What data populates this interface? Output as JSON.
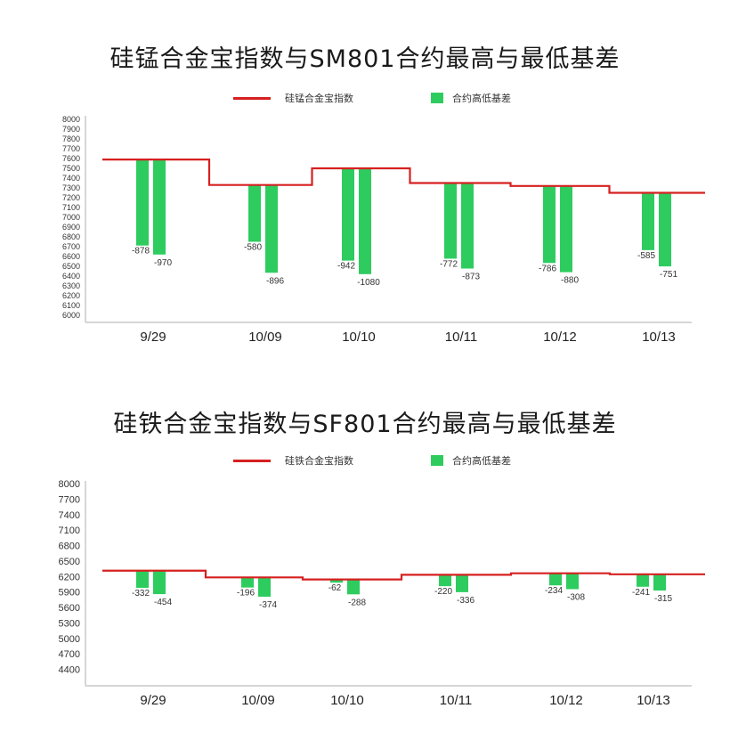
{
  "colors": {
    "line": "#d62020",
    "bar": "#2ecc5f",
    "axis": "#c9c9c9",
    "text": "#333333"
  },
  "legend": {
    "line_label": "硅锰合金宝指数",
    "bar_label": "合约高低基差"
  },
  "chart_data": [
    {
      "type": "bar",
      "title": "硅锰合金宝指数与SM801合约最高与最低基差",
      "categories": [
        "9/29",
        "10/09",
        "10/10",
        "10/11",
        "10/12",
        "10/13"
      ],
      "ylim": [
        6000,
        8000
      ],
      "yticks": [
        6000,
        6100,
        6200,
        6300,
        6400,
        6500,
        6600,
        6700,
        6800,
        6900,
        7000,
        7100,
        7200,
        7300,
        7400,
        7500,
        7600,
        7700,
        7800,
        7900,
        8000
      ],
      "index_line": {
        "name": "硅锰合金宝指数",
        "values": [
          7590,
          7330,
          7500,
          7350,
          7320,
          7250
        ]
      },
      "series": [
        {
          "name": "合约高低基差",
          "values": [
            -878,
            -580,
            -942,
            -772,
            -786,
            -585
          ]
        },
        {
          "name": "合约高低基差",
          "values": [
            -970,
            -896,
            -1080,
            -873,
            -880,
            -751
          ]
        }
      ],
      "legend_position": "top-center",
      "grid": false
    },
    {
      "type": "bar",
      "title": "硅铁合金宝指数与SF801合约最高与最低基差",
      "categories": [
        "9/29",
        "10/09",
        "10/10",
        "10/11",
        "10/12",
        "10/13"
      ],
      "ylim": [
        4100,
        8000
      ],
      "yticks": [
        4400,
        4700,
        5000,
        5300,
        5600,
        5900,
        6200,
        6500,
        6800,
        7100,
        7400,
        7700,
        8000
      ],
      "index_line": {
        "name": "硅铁合金宝指数",
        "values": [
          6330,
          6200,
          6160,
          6250,
          6280,
          6260
        ]
      },
      "series": [
        {
          "name": "合约高低基差",
          "values": [
            -332,
            -196,
            -62,
            -220,
            -234,
            -241
          ]
        },
        {
          "name": "合约高低基差",
          "values": [
            -454,
            -374,
            -288,
            -336,
            -308,
            -315
          ]
        }
      ],
      "legend_position": "top-center",
      "grid": false
    }
  ]
}
